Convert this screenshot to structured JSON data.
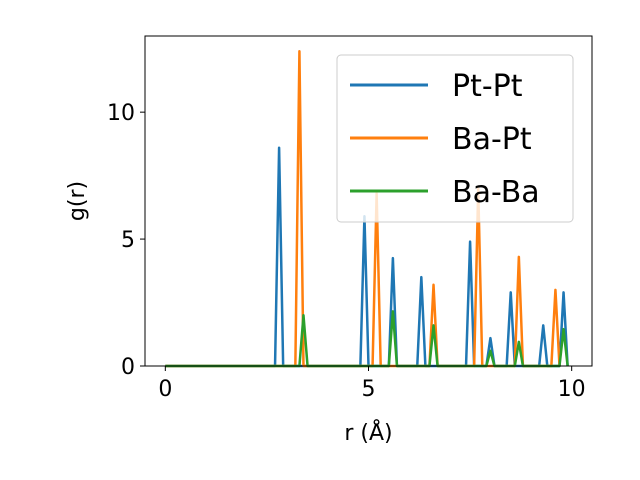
{
  "chart_data": {
    "type": "line",
    "title": "",
    "xlabel": "r (Å)",
    "ylabel": "g(r)",
    "xlim": [
      -0.5,
      10.5
    ],
    "ylim": [
      0,
      13
    ],
    "xticks": [
      0,
      5,
      10
    ],
    "yticks": [
      0,
      5,
      10
    ],
    "grid": false,
    "legend_position": "top-right",
    "series": [
      {
        "name": "Pt-Pt",
        "color": "#1f77b4",
        "x": [
          0,
          2.7,
          2.8,
          2.9,
          4.8,
          4.9,
          5.0,
          5.5,
          5.6,
          5.7,
          6.2,
          6.3,
          6.4,
          7.4,
          7.5,
          7.6,
          7.9,
          8.0,
          8.1,
          8.4,
          8.5,
          8.6,
          9.2,
          9.3,
          9.4,
          9.7,
          9.8,
          9.9
        ],
        "y": [
          0,
          0,
          8.6,
          0,
          0,
          5.9,
          0,
          0,
          4.25,
          0,
          0,
          3.5,
          0,
          0,
          4.9,
          0,
          0,
          1.1,
          0,
          0,
          2.9,
          0,
          0,
          1.6,
          0,
          0,
          2.9,
          0
        ]
      },
      {
        "name": "Ba-Pt",
        "color": "#ff7f0e",
        "x": [
          0,
          3.2,
          3.3,
          3.4,
          5.1,
          5.2,
          5.3,
          6.5,
          6.6,
          6.7,
          7.6,
          7.7,
          7.8,
          8.6,
          8.7,
          8.8,
          9.5,
          9.6,
          9.7
        ],
        "y": [
          0,
          0,
          12.4,
          0,
          0,
          6.8,
          0,
          0,
          3.2,
          0,
          0,
          7.0,
          0,
          0,
          4.3,
          0,
          0,
          3.0,
          0
        ]
      },
      {
        "name": "Ba-Ba",
        "color": "#2ca02c",
        "x": [
          0,
          3.3,
          3.4,
          3.5,
          5.5,
          5.6,
          5.7,
          6.5,
          6.6,
          6.7,
          7.9,
          8.0,
          8.1,
          8.6,
          8.7,
          8.8,
          9.7,
          9.8,
          9.9
        ],
        "y": [
          0,
          0,
          2.0,
          0,
          0,
          2.15,
          0,
          0,
          1.6,
          0,
          0,
          0.6,
          0,
          0,
          0.95,
          0,
          0,
          1.45,
          0
        ]
      }
    ]
  }
}
